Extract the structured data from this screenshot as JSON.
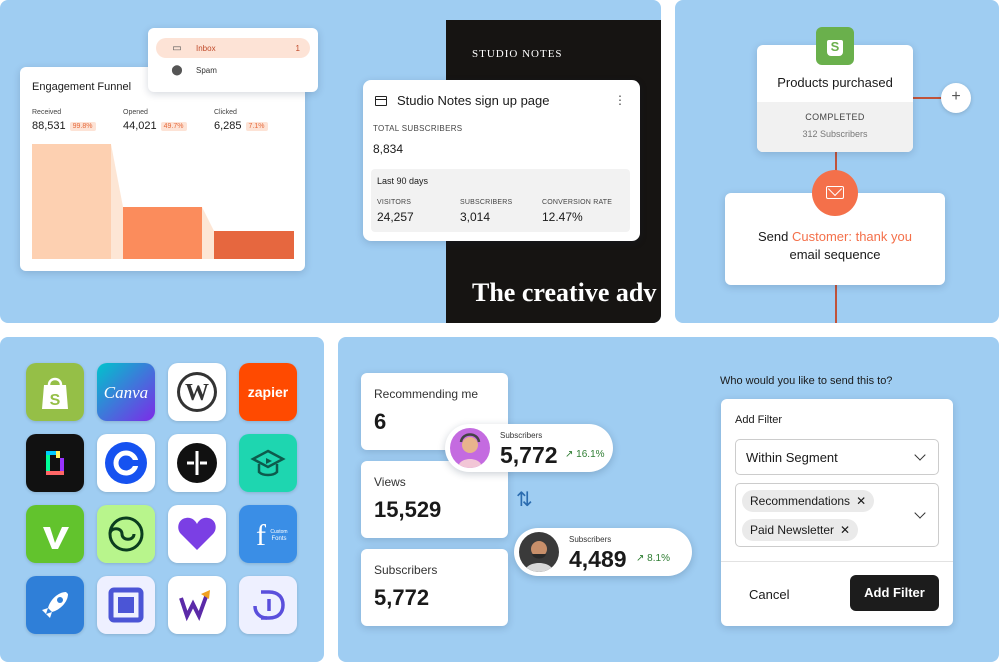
{
  "funnel": {
    "title": "Engagement Funnel",
    "stats": [
      {
        "label": "Received",
        "value": "88,531",
        "pct": "99.8%"
      },
      {
        "label": "Opened",
        "value": "44,021",
        "pct": "49.7%"
      },
      {
        "label": "Clicked",
        "value": "6,285",
        "pct": "7.1%"
      }
    ],
    "colors": {
      "received": "#fdd0b1",
      "opened": "#fb8c5c",
      "clicked": "#e6673f"
    }
  },
  "mail_menu": {
    "items": [
      {
        "label": "Inbox",
        "count": "1",
        "icon": "inbox-icon"
      },
      {
        "label": "Spam",
        "count": "",
        "icon": "alert-icon"
      }
    ]
  },
  "dark_page": {
    "brand": "STUDIO NOTES",
    "headline": "The creative adv"
  },
  "signup_card": {
    "title": "Studio Notes sign up page",
    "total_label": "TOTAL SUBSCRIBERS",
    "total_value": "8,834",
    "period": "Last 90 days",
    "metrics": [
      {
        "label": "VISITORS",
        "value": "24,257"
      },
      {
        "label": "SUBSCRIBERS",
        "value": "3,014"
      },
      {
        "label": "CONVERSION RATE",
        "value": "12.47%"
      }
    ]
  },
  "automation": {
    "trigger_title": "Products purchased",
    "status": "COMPLETED",
    "count": "312 Subscribers",
    "plus": "+",
    "action_prefix": "Send",
    "action_highlight": "Customer: thank you",
    "action_suffix": "email sequence",
    "accent": "#f4704a"
  },
  "apps": {
    "icons": [
      "shopify-icon",
      "canva-icon",
      "wordpress-icon",
      "zapier-icon",
      "giphy-icon",
      "coinbase-icon",
      "plus-minus-icon",
      "course-icon",
      "vimeo-icon",
      "swirl-icon",
      "heart-icon",
      "custom-fonts-icon",
      "rocket-icon",
      "square-icon",
      "w-chart-icon",
      "d-logo-icon"
    ],
    "labels": {
      "canva": "Canva",
      "zapier": "zapier",
      "custom_fonts_f": "f",
      "custom_fonts_sub1": "Custom",
      "custom_fonts_sub2": "Fonts"
    }
  },
  "recommend": {
    "stats": [
      {
        "label": "Recommending me",
        "value": "6"
      },
      {
        "label": "Views",
        "value": "15,529"
      },
      {
        "label": "Subscribers",
        "value": "5,772"
      }
    ],
    "pills": [
      {
        "label": "Subscribers",
        "value": "5,772",
        "trend": "16.1%"
      },
      {
        "label": "Subscribers",
        "value": "4,489",
        "trend": "8.1%"
      }
    ],
    "trend_arrow": "↗",
    "sync_glyph": "⇅"
  },
  "filter": {
    "question": "Who would you like to send this to?",
    "title": "Add Filter",
    "select_value": "Within Segment",
    "chips": [
      "Recommendations",
      "Paid Newsletter"
    ],
    "chip_close": "✕",
    "cancel": "Cancel",
    "submit": "Add Filter"
  }
}
